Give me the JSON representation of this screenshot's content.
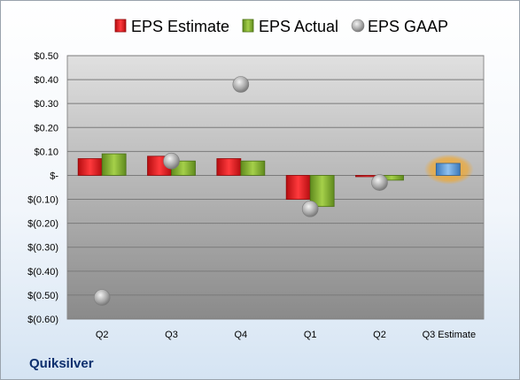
{
  "company": "Quiksilver",
  "chart_data": {
    "type": "bar",
    "categories": [
      "Q2",
      "Q3",
      "Q4",
      "Q1",
      "Q2",
      "Q3 Estimate"
    ],
    "series": [
      {
        "name": "EPS Estimate",
        "type": "bar",
        "values": [
          0.07,
          0.08,
          0.07,
          -0.1,
          -0.005,
          null
        ],
        "color": "#e0191c"
      },
      {
        "name": "EPS Actual",
        "type": "bar",
        "values": [
          0.09,
          0.06,
          0.06,
          -0.13,
          -0.02,
          null
        ],
        "color": "#8ab531"
      },
      {
        "name": "EPS GAAP",
        "type": "scatter",
        "values": [
          -0.51,
          0.06,
          0.38,
          -0.14,
          -0.03,
          null
        ],
        "color": "#a7a7a7"
      },
      {
        "name": "Q3 Estimate",
        "type": "bar",
        "values": [
          null,
          null,
          null,
          null,
          null,
          0.05
        ],
        "color": "#5b9bd5",
        "highlight": "#f5a623"
      }
    ],
    "ylim": [
      -0.6,
      0.5
    ],
    "yticks": [
      0.5,
      0.4,
      0.3,
      0.2,
      0.1,
      0,
      -0.1,
      -0.2,
      -0.3,
      -0.4,
      -0.5,
      -0.6
    ],
    "ytick_labels": [
      "$0.50",
      "$0.40",
      "$0.30",
      "$0.20",
      "$0.10",
      "$-",
      "$(0.10)",
      "$(0.20)",
      "$(0.30)",
      "$(0.40)",
      "$(0.50)",
      "$(0.60)"
    ],
    "legend": [
      "EPS Estimate",
      "EPS Actual",
      "EPS GAAP"
    ],
    "legend_position": "top",
    "grid": true
  }
}
